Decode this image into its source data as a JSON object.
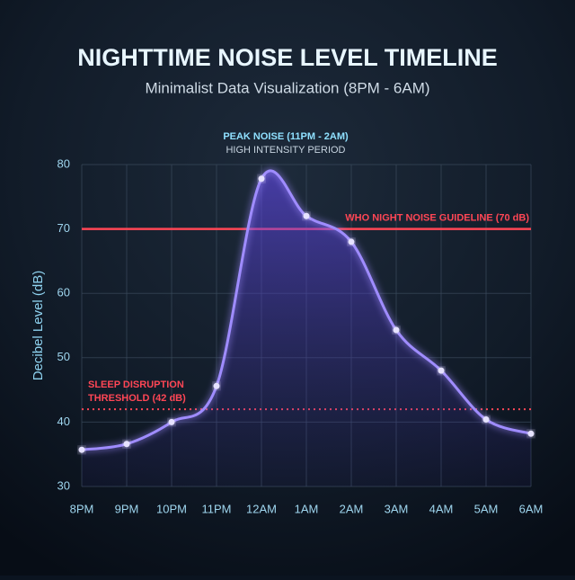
{
  "chart_data": {
    "type": "line",
    "title": "NIGHTTIME NOISE LEVEL TIMELINE",
    "subtitle": "Minimalist Data Visualization (8PM - 6AM)",
    "y_label": "Decibel Level (dB)",
    "annotation": {
      "title": "PEAK NOISE (11PM - 2AM)",
      "subtitle": "HIGH INTENSITY PERIOD"
    },
    "categories": [
      "8PM",
      "9PM",
      "10PM",
      "11PM",
      "12AM",
      "1AM",
      "2AM",
      "3AM",
      "4AM",
      "5AM",
      "6AM"
    ],
    "series": [
      {
        "name": "Decibel Level",
        "color": "#9f8cff",
        "values": [
          35.7,
          36.6,
          40,
          45.6,
          77.8,
          72,
          68,
          54.3,
          48,
          40.4,
          38.2
        ]
      }
    ],
    "reference_lines": [
      {
        "label": [
          "WHO NIGHT NOISE GUIDELINE (70 dB)"
        ],
        "value": 70,
        "color": "#ff4655",
        "style": "solid",
        "label_align": "right"
      },
      {
        "label": [
          "SLEEP DISRUPTION",
          "THRESHOLD (42 dB)"
        ],
        "value": 42,
        "color": "#ff4655",
        "style": "dotted",
        "label_align": "left"
      }
    ],
    "ylim": [
      30,
      80
    ],
    "yticks": [
      30,
      40,
      50,
      60,
      70,
      80
    ],
    "grid": true
  }
}
